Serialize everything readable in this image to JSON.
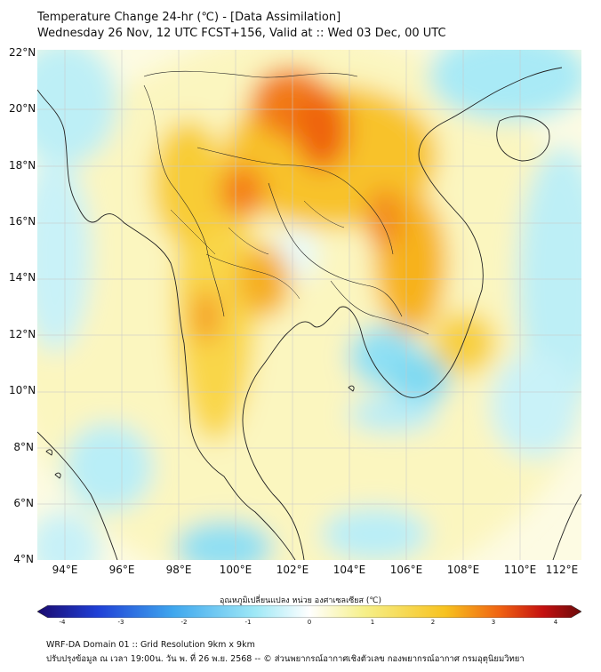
{
  "header": {
    "title": "Temperature Change 24-hr (℃) - [Data Assimilation]",
    "subtitle": "Wednesday 26 Nov, 12 UTC FCST+156, Valid at :: Wed 03 Dec, 00 UTC"
  },
  "axes": {
    "lat_labels": [
      "22°N",
      "20°N",
      "18°N",
      "16°N",
      "14°N",
      "12°N",
      "10°N",
      "8°N",
      "6°N",
      "4°N"
    ],
    "lon_labels": [
      "94°E",
      "96°E",
      "98°E",
      "100°E",
      "102°E",
      "104°E",
      "106°E",
      "108°E",
      "110°E",
      "112°E"
    ]
  },
  "colorbar": {
    "title": "อุณหภูมิเปลี่ยนแปลง หน่วย องศาเซลเซียส (℃)",
    "ticks": [
      "-4",
      "-3",
      "-2",
      "-1",
      "0",
      "1",
      "2",
      "3",
      "4"
    ],
    "stops": [
      "#1a0a6e",
      "#1f3fd6",
      "#3fa7ee",
      "#9ee8f6",
      "#ffffff",
      "#f6f08a",
      "#f7c21f",
      "#f06212",
      "#c41010",
      "#6b0b0b"
    ]
  },
  "footer": {
    "line1": "WRF-DA Domain 01 :: Grid Resolution 9km x 9km",
    "line2": "ปรับปรุงข้อมูล ณ เวลา 19:00น. วัน พ. ที่ 26 พ.ย. 2568 -- © ส่วนพยากรณ์อากาศเชิงตัวเลข กองพยากรณ์อากาศ กรมอุตุนิยมวิทยา"
  }
}
